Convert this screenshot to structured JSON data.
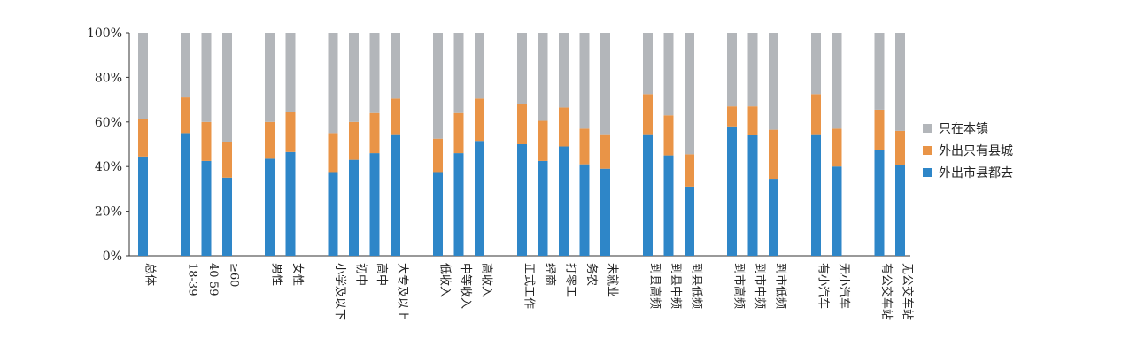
{
  "chart_data": {
    "type": "bar",
    "stacked": true,
    "ylim": [
      0,
      100
    ],
    "yticks": [
      "0%",
      "20%",
      "40%",
      "60%",
      "80%",
      "100%"
    ],
    "grid": false,
    "legend_position": "right",
    "categories": [
      "总体",
      "18-39",
      "40-59",
      "≥60",
      "男性",
      "女性",
      "小学及以下",
      "初中",
      "高中",
      "大专及以上",
      "低收入",
      "中等收入",
      "高收入",
      "正式工作",
      "经商",
      "打零工",
      "务农",
      "未就业",
      "到县高频",
      "到县中频",
      "到县低频",
      "到市高频",
      "到市中频",
      "到市低频",
      "有小汽车",
      "无小汽车",
      "有公交车站",
      "无公交车站"
    ],
    "groups": [
      1,
      3,
      2,
      4,
      3,
      5,
      3,
      3,
      2,
      2
    ],
    "series": [
      {
        "name": "外出市县都去",
        "color": "#2e86c8",
        "values": [
          44.5,
          55,
          42.5,
          35,
          43.5,
          46.5,
          37.5,
          43,
          46,
          54.5,
          37.5,
          46,
          51.5,
          50,
          42.5,
          49,
          41,
          39,
          54.5,
          45,
          31,
          58,
          54,
          34.5,
          54.5,
          40,
          47.5,
          40.5
        ]
      },
      {
        "name": "外出只有县城",
        "color": "#e99447",
        "values": [
          17,
          16,
          17.5,
          16,
          16.5,
          18,
          17.5,
          17,
          18,
          16,
          15,
          18,
          19,
          18,
          18,
          17.5,
          16,
          15.5,
          18,
          18,
          14.5,
          9,
          13,
          22,
          18,
          17,
          18,
          15.5
        ]
      },
      {
        "name": "只在本镇",
        "color": "#b3b6ba",
        "values": [
          38.5,
          29,
          40,
          49,
          40,
          35.5,
          45,
          40,
          36,
          29.5,
          47.5,
          36,
          29.5,
          32,
          39.5,
          33.5,
          43,
          45.5,
          27.5,
          37,
          54.5,
          33,
          33,
          43.5,
          27.5,
          43,
          34.5,
          44
        ]
      }
    ]
  },
  "legend": [
    {
      "label": "只在本镇",
      "color": "#b3b6ba"
    },
    {
      "label": "外出只有县城",
      "color": "#e99447"
    },
    {
      "label": "外出市县都去",
      "color": "#2e86c8"
    }
  ]
}
